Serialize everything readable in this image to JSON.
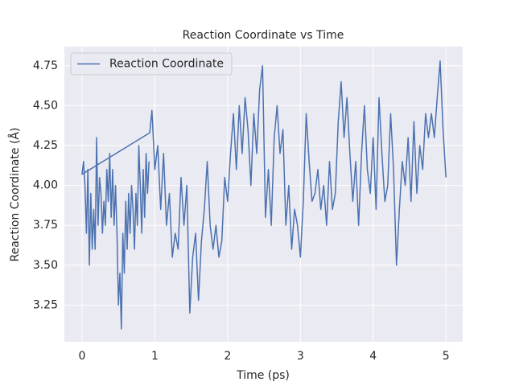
{
  "chart_data": {
    "type": "line",
    "title": "Reaction Coordinate vs Time",
    "xlabel": "Time (ps)",
    "ylabel": "Reaction Coordinate (Å)",
    "x": [
      0.92,
      0.9,
      0.88,
      0.86,
      0.84,
      0.82,
      0.8,
      0.78,
      0.76,
      0.74,
      0.72,
      0.7,
      0.68,
      0.66,
      0.64,
      0.62,
      0.6,
      0.58,
      0.56,
      0.54,
      0.52,
      0.5,
      0.48,
      0.46,
      0.44,
      0.42,
      0.4,
      0.38,
      0.36,
      0.34,
      0.32,
      0.3,
      0.28,
      0.26,
      0.24,
      0.22,
      0.2,
      0.18,
      0.16,
      0.14,
      0.12,
      0.1,
      0.08,
      0.06,
      0.04,
      0.02,
      0.0,
      0.93,
      0.96,
      1.0,
      1.04,
      1.08,
      1.12,
      1.16,
      1.2,
      1.24,
      1.28,
      1.32,
      1.36,
      1.4,
      1.44,
      1.48,
      1.52,
      1.56,
      1.6,
      1.64,
      1.68,
      1.72,
      1.76,
      1.8,
      1.84,
      1.88,
      1.92,
      1.96,
      2.0,
      2.04,
      2.08,
      2.12,
      2.16,
      2.2,
      2.24,
      2.28,
      2.32,
      2.36,
      2.4,
      2.44,
      2.48,
      2.52,
      2.56,
      2.6,
      2.64,
      2.68,
      2.72,
      2.76,
      2.8,
      2.84,
      2.88,
      2.92,
      2.96,
      3.0,
      3.04,
      3.08,
      3.12,
      3.16,
      3.2,
      3.24,
      3.28,
      3.32,
      3.36,
      3.4,
      3.44,
      3.48,
      3.52,
      3.56,
      3.6,
      3.64,
      3.68,
      3.72,
      3.76,
      3.8,
      3.84,
      3.88,
      3.92,
      3.96,
      4.0,
      4.04,
      4.08,
      4.12,
      4.16,
      4.2,
      4.24,
      4.28,
      4.32,
      4.36,
      4.4,
      4.44,
      4.48,
      4.52,
      4.56,
      4.6,
      4.64,
      4.68,
      4.72,
      4.76,
      4.8,
      4.84,
      4.88,
      4.92,
      4.96,
      5.0
    ],
    "series": [
      {
        "name": "Reaction Coordinate",
        "color": "#4c72b0",
        "values": [
          4.15,
          3.95,
          4.2,
          3.8,
          4.1,
          3.7,
          4.0,
          4.25,
          3.75,
          3.95,
          3.6,
          3.85,
          4.0,
          3.7,
          3.95,
          3.6,
          3.9,
          3.45,
          3.7,
          3.1,
          3.45,
          3.25,
          3.7,
          4.0,
          3.75,
          4.1,
          3.8,
          4.2,
          3.9,
          4.1,
          3.75,
          3.9,
          3.7,
          3.95,
          4.05,
          3.75,
          4.3,
          3.6,
          3.85,
          3.6,
          3.95,
          3.5,
          4.1,
          3.7,
          4.0,
          4.15,
          4.07,
          4.33,
          4.47,
          4.1,
          4.25,
          3.85,
          4.2,
          3.75,
          3.95,
          3.55,
          3.7,
          3.6,
          4.05,
          3.75,
          4.0,
          3.2,
          3.55,
          3.7,
          3.28,
          3.65,
          3.85,
          4.15,
          3.75,
          3.6,
          3.75,
          3.55,
          3.65,
          4.05,
          3.9,
          4.2,
          4.45,
          4.1,
          4.5,
          4.2,
          4.55,
          4.35,
          4.0,
          4.45,
          4.2,
          4.6,
          4.75,
          3.8,
          4.1,
          3.75,
          4.3,
          4.5,
          4.2,
          4.35,
          3.75,
          4.0,
          3.6,
          3.85,
          3.75,
          3.55,
          3.9,
          4.45,
          4.15,
          3.9,
          3.95,
          4.1,
          3.85,
          4.0,
          3.75,
          4.15,
          3.85,
          3.95,
          4.4,
          4.65,
          4.3,
          4.55,
          4.2,
          3.9,
          4.15,
          3.75,
          4.2,
          4.5,
          4.1,
          3.95,
          4.3,
          3.85,
          4.55,
          4.2,
          3.9,
          4.0,
          4.45,
          4.1,
          3.5,
          3.85,
          4.15,
          4.0,
          4.3,
          3.9,
          4.4,
          3.95,
          4.25,
          4.1,
          4.45,
          4.3,
          4.45,
          4.3,
          4.55,
          4.78,
          4.35,
          4.05
        ]
      }
    ],
    "xlim": [
      -0.243,
      5.23
    ],
    "xticks": [
      0,
      1,
      2,
      3,
      4,
      5
    ],
    "ylim": [
      3.02,
      4.87
    ],
    "yticks": [
      {
        "value": 3.25,
        "label": "3.25"
      },
      {
        "value": 3.5,
        "label": "3.50"
      },
      {
        "value": 3.75,
        "label": "3.75"
      },
      {
        "value": 4.0,
        "label": "4.00"
      },
      {
        "value": 4.25,
        "label": "4.25"
      },
      {
        "value": 4.5,
        "label": "4.50"
      },
      {
        "value": 4.75,
        "label": "4.75"
      }
    ],
    "grid": true,
    "legend": "upper left"
  }
}
